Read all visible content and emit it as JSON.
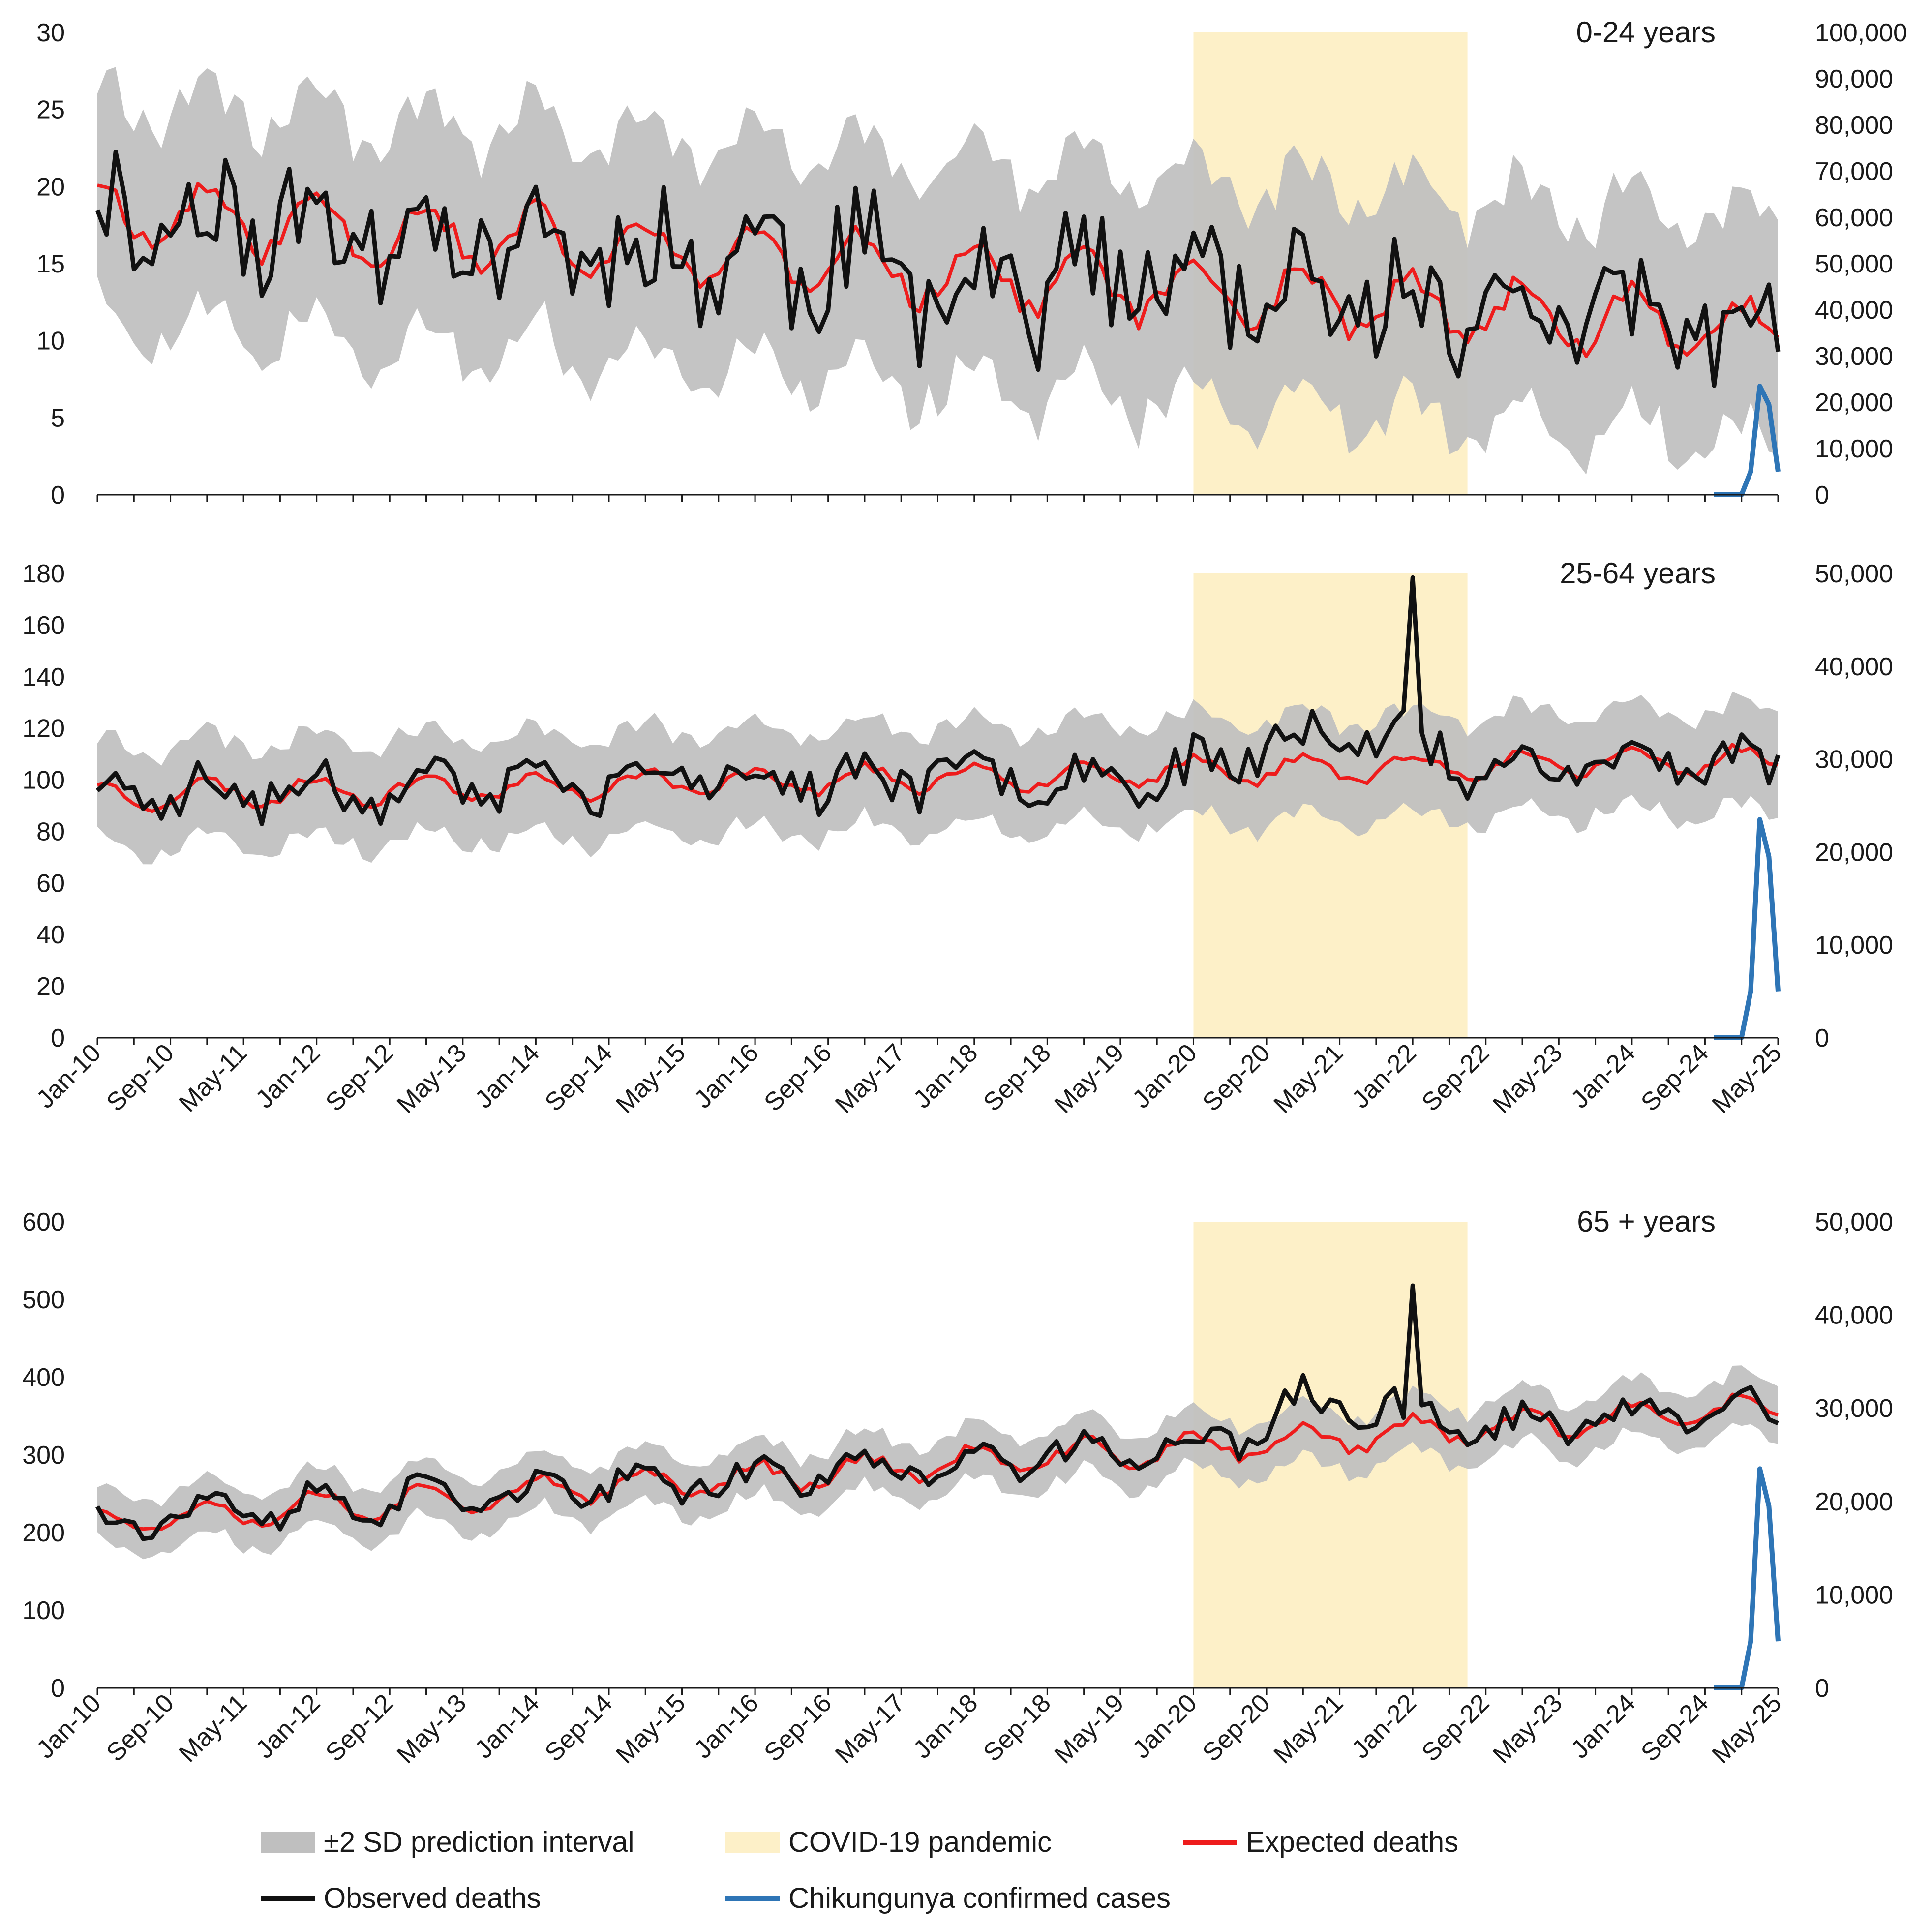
{
  "chart_data": [
    {
      "type": "line",
      "title": "0-24 years",
      "x_start": "Jan-10",
      "x_end": "May-25",
      "x_tick_labels": [
        "Jan-10",
        "Sep-10",
        "May-11",
        "Jan-12",
        "Sep-12",
        "May-13",
        "Jan-14",
        "Sep-14",
        "May-15",
        "Jan-16",
        "Sep-16",
        "May-17",
        "Jan-18",
        "Sep-18",
        "May-19",
        "Jan-20",
        "Sep-20",
        "May-21",
        "Jan-22",
        "Sep-22",
        "May-23",
        "Jan-24",
        "Sep-24",
        "May-25"
      ],
      "ylim_left": [
        0,
        30
      ],
      "yticks_left": [
        "0",
        "5",
        "10",
        "15",
        "20",
        "25",
        "30"
      ],
      "ylim_right": [
        0,
        100000
      ],
      "yticks_right": [
        "0",
        "10,000",
        "20,000",
        "30,000",
        "40,000",
        "50,000",
        "60,000",
        "70,000",
        "80,000",
        "90,000",
        "100,000"
      ],
      "covid_period": [
        "Jan-20",
        "Jul-22"
      ],
      "expected_deaths": {
        "start": 18.5,
        "end": 10.5,
        "amplitude": 2.0
      },
      "prediction_interval_halfwidth": 7.0,
      "observed_deaths": {
        "noise": 3.6,
        "seed": 11,
        "covid_excess": 0
      },
      "chikungunya_cases": [
        0,
        0,
        0,
        0,
        5000,
        23500,
        19500,
        5000
      ]
    },
    {
      "type": "line",
      "title": "25-64 years",
      "x_start": "Jan-10",
      "x_end": "May-25",
      "x_tick_labels": [
        "Jan-10",
        "Sep-10",
        "May-11",
        "Jan-12",
        "Sep-12",
        "May-13",
        "Jan-14",
        "Sep-14",
        "May-15",
        "Jan-16",
        "Sep-16",
        "May-17",
        "Jan-18",
        "Sep-18",
        "May-19",
        "Jan-20",
        "Sep-20",
        "May-21",
        "Jan-22",
        "Sep-22",
        "May-23",
        "Jan-24",
        "Sep-24",
        "May-25"
      ],
      "ylim_left": [
        0,
        180
      ],
      "yticks_left": [
        "0",
        "20",
        "40",
        "60",
        "80",
        "100",
        "120",
        "140",
        "160",
        "180"
      ],
      "ylim_right": [
        0,
        50000
      ],
      "yticks_right": [
        "0",
        "10,000",
        "20,000",
        "30,000",
        "40,000",
        "50,000"
      ],
      "covid_period": [
        "Jan-20",
        "Jul-22"
      ],
      "expected_deaths": {
        "start": 94,
        "end": 108,
        "amplitude": 5.0
      },
      "prediction_interval_halfwidth": 19.0,
      "observed_deaths": {
        "noise": 8.0,
        "seed": 23,
        "covid_excess": 16
      },
      "chikungunya_cases": [
        0,
        0,
        0,
        0,
        5000,
        23500,
        19500,
        5000
      ]
    },
    {
      "type": "line",
      "title": "65 + years",
      "x_start": "Jan-10",
      "x_end": "May-25",
      "x_tick_labels": [
        "Jan-10",
        "Sep-10",
        "May-11",
        "Jan-12",
        "Sep-12",
        "May-13",
        "Jan-14",
        "Sep-14",
        "May-15",
        "Jan-16",
        "Sep-16",
        "May-17",
        "Jan-18",
        "Sep-18",
        "May-19",
        "Jan-20",
        "Sep-20",
        "May-21",
        "Jan-22",
        "Sep-22",
        "May-23",
        "Jan-24",
        "Sep-24",
        "May-25"
      ],
      "ylim_left": [
        0,
        600
      ],
      "yticks_left": [
        "0",
        "100",
        "200",
        "300",
        "400",
        "500",
        "600"
      ],
      "ylim_right": [
        0,
        50000
      ],
      "yticks_right": [
        "0",
        "10,000",
        "20,000",
        "30,000",
        "40,000",
        "50,000"
      ],
      "covid_period": [
        "Jan-20",
        "Jul-22"
      ],
      "expected_deaths": {
        "start": 215,
        "end": 360,
        "amplitude": 18.0
      },
      "prediction_interval_halfwidth": 34.0,
      "observed_deaths": {
        "noise": 15.0,
        "seed": 37,
        "covid_excess": 45
      },
      "chikungunya_cases": [
        0,
        0,
        0,
        0,
        5000,
        23500,
        19500,
        5000
      ]
    }
  ],
  "legend": {
    "prediction_interval": "±2 SD prediction interval",
    "covid": "COVID-19 pandemic",
    "expected": "Expected deaths",
    "observed": "Observed deaths",
    "chikungunya": "Chikungunya confirmed cases"
  },
  "colors": {
    "interval": "#bfbfbf",
    "covid": "#fdf0c8",
    "expected": "#ee1c1c",
    "observed": "#111111",
    "chikungunya": "#2e75b6",
    "axis": "#1a1a1a"
  }
}
